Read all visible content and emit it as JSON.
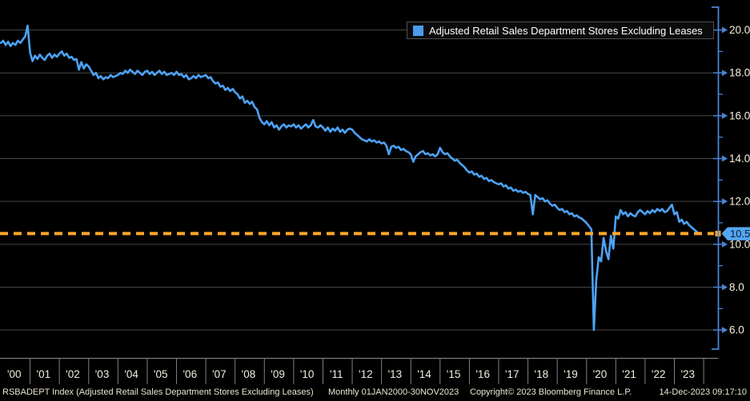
{
  "legend": {
    "label": "Adjusted Retail Sales Department Stores Excluding Leases",
    "swatch_color": "#4a9ced"
  },
  "last_value_badge": {
    "label": "10.5",
    "value": 10.5,
    "bg": "#55a6f2",
    "text_color": "#0b1a2e"
  },
  "y_axis": {
    "side": "right",
    "major_ticks": [
      {
        "value": 20,
        "label": "20.0"
      },
      {
        "value": 18,
        "label": "18.0"
      },
      {
        "value": 16,
        "label": "16.0"
      },
      {
        "value": 14,
        "label": "14.0"
      },
      {
        "value": 12,
        "label": "12.0"
      },
      {
        "value": 10,
        "label": "10.0"
      },
      {
        "value": 8,
        "label": "8.0"
      },
      {
        "value": 6,
        "label": "6.0"
      }
    ],
    "minor_ticks": [
      19,
      17,
      15,
      13,
      11,
      9,
      7
    ],
    "label_color": "#f5efdc",
    "axis_color": "#4a84d4"
  },
  "x_axis": {
    "years": [
      "'00",
      "'01",
      "'02",
      "'03",
      "'04",
      "'05",
      "'06",
      "'07",
      "'08",
      "'09",
      "'10",
      "'11",
      "'12",
      "'13",
      "'14",
      "'15",
      "'16",
      "'17",
      "'18",
      "'19",
      "'20",
      "'21",
      "'22",
      "'23"
    ],
    "label_color": "#f2eedd",
    "line_color": "#8a8a8a"
  },
  "footer": {
    "description": "RSBADEPT Index (Adjusted Retail Sales Department Stores Excluding Leases)",
    "periodicity": "Monthly 01JAN2000-30NOV2023",
    "copyright": "Copyright© 2023 Bloomberg Finance L.P.",
    "timestamp": "14-Dec-2023 09:17:10"
  },
  "chart_data": {
    "type": "line",
    "title": "Adjusted Retail Sales Department Stores Excluding Leases",
    "frequency": "Monthly",
    "x_start": "2000-01",
    "x_end": "2023-11",
    "ylim": [
      4.7,
      21.4
    ],
    "grid": true,
    "legend_position": "top-right",
    "threshold": {
      "value": 10.5,
      "color": "#ffa62b",
      "style": "dashed"
    },
    "last_value": 10.5,
    "series": [
      {
        "name": "Adjusted Retail Sales Department Stores Excluding Leases",
        "color": "#4da2f5",
        "values": [
          19.4,
          19.5,
          19.3,
          19.45,
          19.25,
          19.4,
          19.3,
          19.5,
          19.4,
          19.55,
          19.7,
          20.2,
          18.95,
          18.55,
          18.8,
          18.65,
          18.85,
          18.7,
          18.6,
          18.8,
          18.9,
          18.7,
          18.85,
          18.75,
          18.9,
          19.0,
          18.8,
          18.9,
          18.7,
          18.75,
          18.6,
          18.65,
          18.15,
          18.5,
          18.2,
          18.4,
          18.3,
          18.1,
          17.9,
          18.0,
          17.75,
          17.85,
          17.7,
          17.8,
          17.75,
          17.9,
          17.8,
          17.85,
          17.9,
          18.0,
          17.95,
          18.1,
          18.0,
          18.15,
          18.05,
          17.95,
          18.1,
          18.0,
          17.9,
          18.05,
          18.1,
          17.95,
          18.05,
          17.9,
          18.0,
          18.1,
          17.95,
          18.05,
          17.9,
          17.95,
          18.0,
          17.9,
          18.05,
          17.9,
          17.95,
          17.8,
          17.9,
          17.7,
          17.75,
          17.85,
          17.75,
          17.9,
          17.8,
          17.85,
          17.9,
          17.75,
          17.8,
          17.6,
          17.5,
          17.55,
          17.35,
          17.4,
          17.2,
          17.3,
          17.15,
          17.25,
          17.1,
          17.0,
          16.8,
          16.9,
          16.6,
          16.7,
          16.55,
          16.65,
          16.4,
          16.3,
          15.9,
          15.7,
          15.6,
          15.75,
          15.55,
          15.7,
          15.45,
          15.55,
          15.35,
          15.5,
          15.6,
          15.45,
          15.55,
          15.5,
          15.6,
          15.45,
          15.55,
          15.4,
          15.5,
          15.6,
          15.45,
          15.55,
          15.8,
          15.5,
          15.45,
          15.55,
          15.45,
          15.3,
          15.45,
          15.25,
          15.4,
          15.3,
          15.45,
          15.25,
          15.35,
          15.2,
          15.35,
          15.4,
          15.35,
          15.2,
          15.1,
          15.0,
          14.9,
          14.85,
          14.8,
          14.9,
          14.8,
          14.85,
          14.75,
          14.8,
          14.7,
          14.75,
          14.6,
          14.2,
          14.55,
          14.6,
          14.5,
          14.55,
          14.4,
          14.45,
          14.35,
          14.3,
          14.2,
          13.85,
          14.1,
          14.2,
          14.3,
          14.35,
          14.2,
          14.25,
          14.15,
          14.2,
          14.1,
          14.2,
          14.5,
          14.3,
          14.2,
          14.25,
          14.1,
          14.0,
          13.9,
          13.95,
          13.8,
          13.7,
          13.6,
          13.45,
          13.35,
          13.4,
          13.25,
          13.3,
          13.15,
          13.2,
          13.05,
          13.1,
          12.95,
          13.0,
          12.9,
          12.85,
          12.8,
          12.85,
          12.7,
          12.75,
          12.6,
          12.65,
          12.5,
          12.55,
          12.45,
          12.5,
          12.4,
          12.45,
          12.35,
          12.3,
          11.4,
          12.3,
          12.2,
          12.1,
          12.15,
          12.0,
          12.05,
          11.9,
          11.8,
          11.85,
          11.7,
          11.6,
          11.65,
          11.5,
          11.55,
          11.4,
          11.45,
          11.3,
          11.35,
          11.25,
          11.2,
          11.1,
          11.0,
          10.85,
          10.7,
          6.0,
          8.3,
          9.4,
          9.2,
          10.3,
          9.7,
          9.3,
          10.4,
          9.8,
          11.3,
          11.2,
          11.6,
          11.4,
          11.5,
          11.3,
          11.45,
          11.35,
          11.3,
          11.5,
          11.6,
          11.5,
          11.4,
          11.55,
          11.45,
          11.6,
          11.5,
          11.65,
          11.55,
          11.65,
          11.5,
          11.55,
          11.7,
          11.85,
          11.4,
          11.5,
          11.05,
          11.15,
          10.95,
          11.05,
          10.9,
          10.8,
          10.7,
          10.6,
          10.5
        ]
      }
    ]
  }
}
